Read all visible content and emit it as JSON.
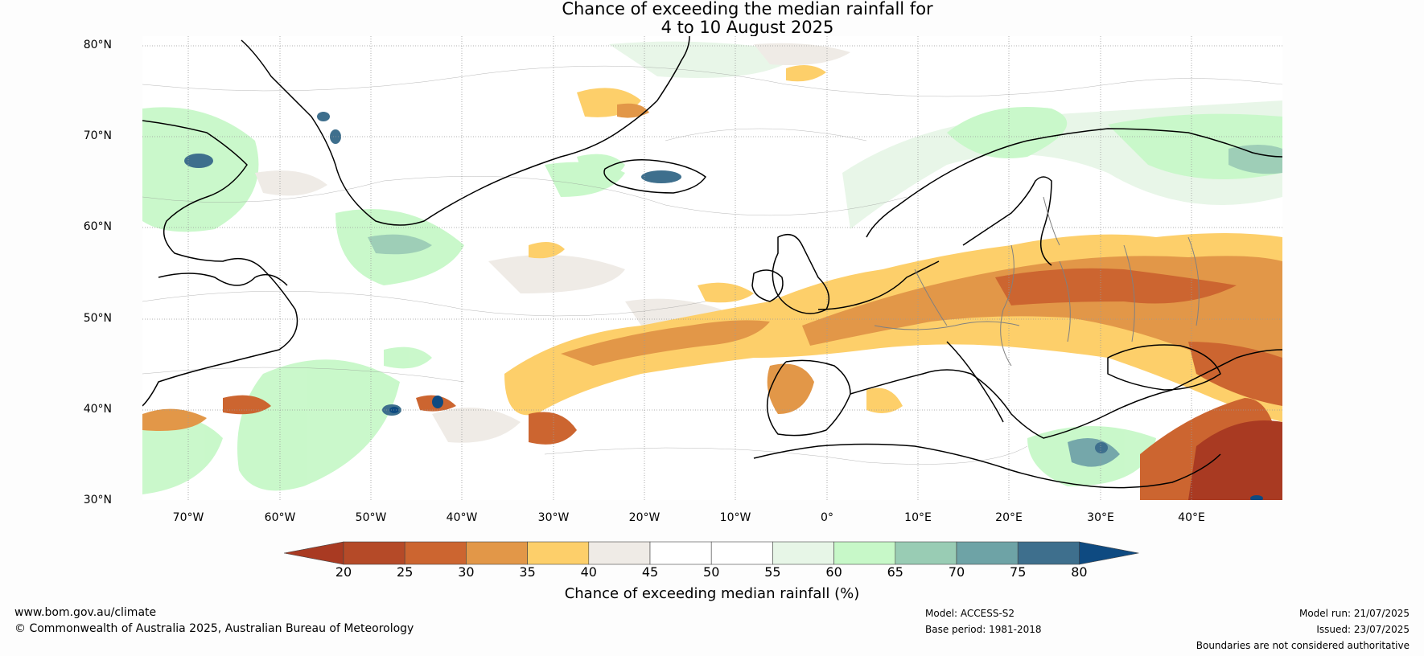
{
  "title": {
    "line1": "Chance of exceeding the median rainfall for",
    "line2": "4 to 10 August 2025"
  },
  "map": {
    "lat_labels": [
      "80°N",
      "70°N",
      "60°N",
      "50°N",
      "40°N",
      "30°N"
    ],
    "lon_labels": [
      "70°W",
      "60°W",
      "50°W",
      "40°W",
      "30°W",
      "20°W",
      "10°W",
      "0°",
      "10°E",
      "20°E",
      "30°E",
      "40°E"
    ],
    "colors": {
      "ocean_background": "#ffffff",
      "coastline": "#000000",
      "borders": "#808080",
      "gridlines": "#999999"
    }
  },
  "colorbar": {
    "label": "Chance of exceeding median rainfall (%)",
    "ticks": [
      "20",
      "25",
      "30",
      "35",
      "40",
      "45",
      "50",
      "55",
      "60",
      "65",
      "70",
      "75",
      "80"
    ],
    "colors": [
      "#a93a22",
      "#b54a28",
      "#cc6530",
      "#e29748",
      "#fdcf6a",
      "#efebe6",
      "#ffffff",
      "#ffffff",
      "#e7f6e7",
      "#c7f8c8",
      "#99ccb4",
      "#6ea3a6",
      "#3e6f8d",
      "#0e4a81"
    ]
  },
  "footer": {
    "website": "www.bom.gov.au/climate",
    "copyright": "© Commonwealth of Australia 2025, Australian Bureau of Meteorology",
    "model": "Model: ACCESS-S2",
    "base_period": "Base period: 1981-2018",
    "model_run": "Model run: 21/07/2025",
    "issued": "Issued: 23/07/2025",
    "boundaries_note": "Boundaries are not considered authoritative"
  }
}
